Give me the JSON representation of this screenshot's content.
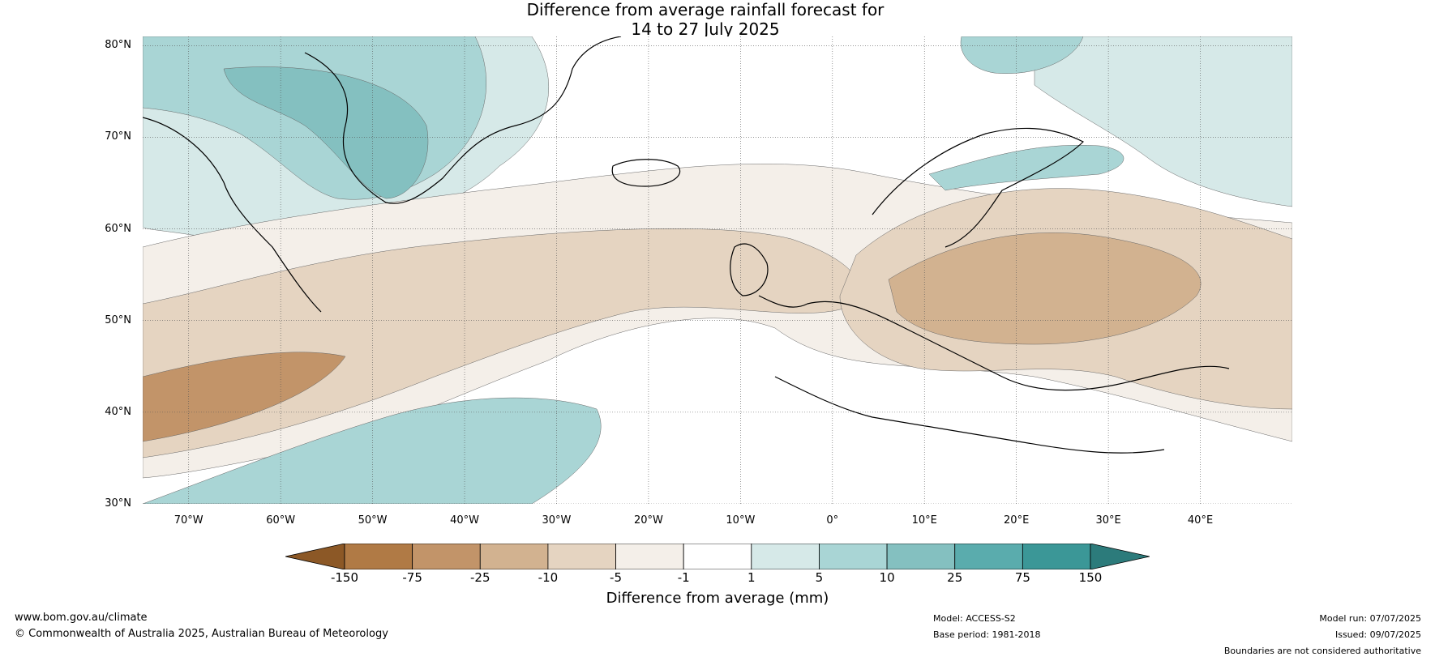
{
  "title": {
    "line1": "Difference from average rainfall forecast for",
    "line2": "14 to 27 July 2025"
  },
  "map": {
    "projection": "equirectangular",
    "region": "North Atlantic and Europe",
    "lon_range": [
      -75,
      50
    ],
    "lat_range": [
      30,
      81
    ],
    "gridlines": true,
    "coastlines": true,
    "country_boundaries": true,
    "lat_labels": [
      "80°N",
      "70°N",
      "60°N",
      "50°N",
      "40°N",
      "30°N"
    ],
    "lon_labels": [
      "70°W",
      "60°W",
      "50°W",
      "40°W",
      "30°W",
      "20°W",
      "10°W",
      "0°",
      "10°E",
      "20°E",
      "30°E",
      "40°E"
    ]
  },
  "colorbar": {
    "title": "Difference from average (mm)",
    "ticks": [
      "-150",
      "-75",
      "-25",
      "-10",
      "-5",
      "-1",
      "1",
      "5",
      "10",
      "25",
      "75",
      "150"
    ],
    "colors": [
      "#8c5826",
      "#b07a45",
      "#c29469",
      "#d2b290",
      "#e5d4c1",
      "#f4efe9",
      "#ffffff",
      "#d6e9e8",
      "#a9d5d5",
      "#84c0c0",
      "#5aacad",
      "#3b9797",
      "#2c7b7b"
    ],
    "extend": "both"
  },
  "footer": {
    "website": "www.bom.gov.au/climate",
    "copyright": "© Commonwealth of Australia 2025, Australian Bureau of Meteorology",
    "model": "Model: ACCESS-S2",
    "base_period": "Base period: 1981-2018",
    "model_run": "Model run: 07/07/2025",
    "issued": "Issued: 09/07/2025",
    "disclaimer": "Boundaries are not considered authoritative"
  }
}
